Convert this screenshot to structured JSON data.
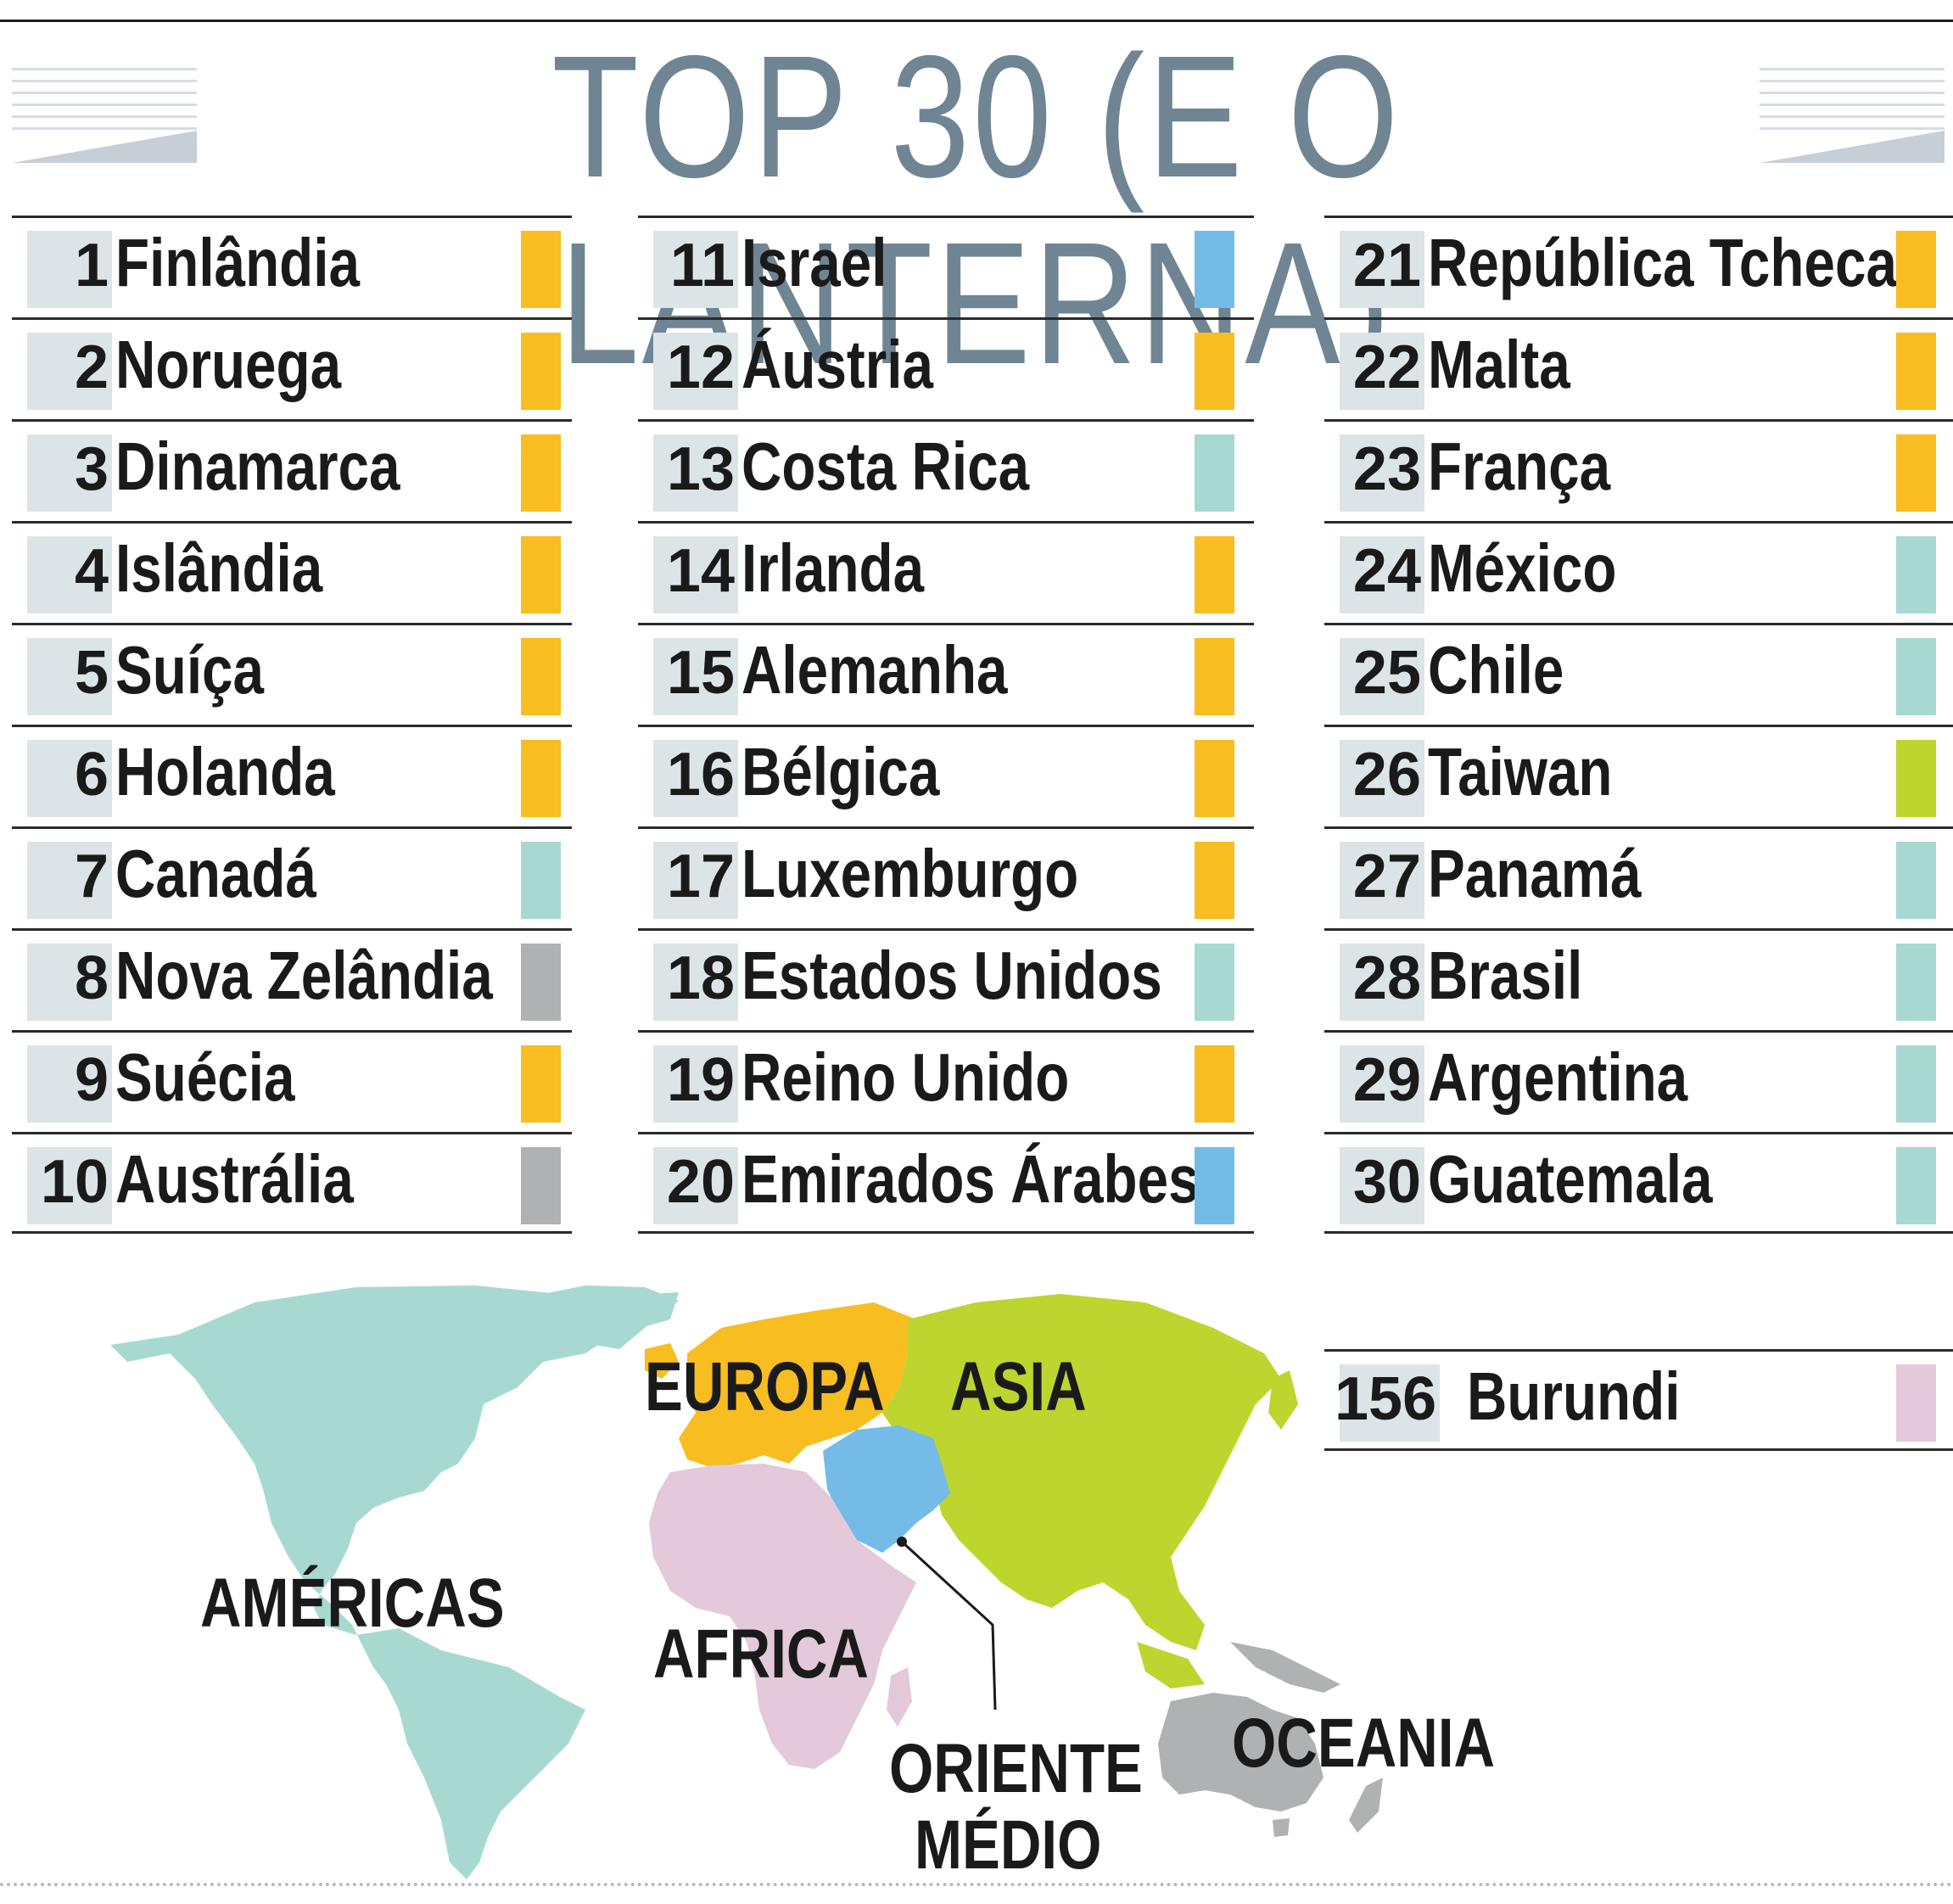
{
  "title": "TOP 30 (E O LANTERNA)",
  "colors": {
    "europa": "#f8bd21",
    "americas": "#a8d9d1",
    "oriente_medio": "#75bbe8",
    "asia": "#bdd52e",
    "oceania": "#b0b1b3",
    "africa": "#e3c9d9"
  },
  "columns": [
    [
      {
        "rank": "1",
        "country": "Finlândia",
        "region": "europa"
      },
      {
        "rank": "2",
        "country": "Noruega",
        "region": "europa"
      },
      {
        "rank": "3",
        "country": "Dinamarca",
        "region": "europa"
      },
      {
        "rank": "4",
        "country": "Islândia",
        "region": "europa"
      },
      {
        "rank": "5",
        "country": "Suíça",
        "region": "europa"
      },
      {
        "rank": "6",
        "country": "Holanda",
        "region": "europa"
      },
      {
        "rank": "7",
        "country": "Canadá",
        "region": "americas"
      },
      {
        "rank": "8",
        "country": "Nova Zelândia",
        "region": "oceania"
      },
      {
        "rank": "9",
        "country": "Suécia",
        "region": "europa"
      },
      {
        "rank": "10",
        "country": "Austrália",
        "region": "oceania"
      }
    ],
    [
      {
        "rank": "11",
        "country": "Israel",
        "region": "oriente_medio"
      },
      {
        "rank": "12",
        "country": "Áustria",
        "region": "europa"
      },
      {
        "rank": "13",
        "country": "Costa Rica",
        "region": "americas"
      },
      {
        "rank": "14",
        "country": "Irlanda",
        "region": "europa"
      },
      {
        "rank": "15",
        "country": "Alemanha",
        "region": "europa"
      },
      {
        "rank": "16",
        "country": "Bélgica",
        "region": "europa"
      },
      {
        "rank": "17",
        "country": "Luxemburgo",
        "region": "europa"
      },
      {
        "rank": "18",
        "country": "Estados Unidos",
        "region": "americas"
      },
      {
        "rank": "19",
        "country": "Reino Unido",
        "region": "europa"
      },
      {
        "rank": "20",
        "country": "Emirados Árabes",
        "region": "oriente_medio"
      }
    ],
    [
      {
        "rank": "21",
        "country": "República Tcheca",
        "region": "europa"
      },
      {
        "rank": "22",
        "country": "Malta",
        "region": "europa"
      },
      {
        "rank": "23",
        "country": "França",
        "region": "europa"
      },
      {
        "rank": "24",
        "country": "México",
        "region": "americas"
      },
      {
        "rank": "25",
        "country": "Chile",
        "region": "americas"
      },
      {
        "rank": "26",
        "country": "Taiwan",
        "region": "asia"
      },
      {
        "rank": "27",
        "country": "Panamá",
        "region": "americas"
      },
      {
        "rank": "28",
        "country": "Brasil",
        "region": "americas"
      },
      {
        "rank": "29",
        "country": "Argentina",
        "region": "americas"
      },
      {
        "rank": "30",
        "country": "Guatemala",
        "region": "americas"
      }
    ]
  ],
  "lanterna": {
    "rank": "156",
    "country": "Burundi",
    "region": "africa"
  },
  "map_labels": {
    "americas": "AMÉRICAS",
    "europa": "EUROPA",
    "asia": "ASIA",
    "africa": "AFRICA",
    "oriente_medio_line1": "ORIENTE",
    "oriente_medio_line2": "MÉDIO",
    "oceania": "OCEANIA"
  }
}
